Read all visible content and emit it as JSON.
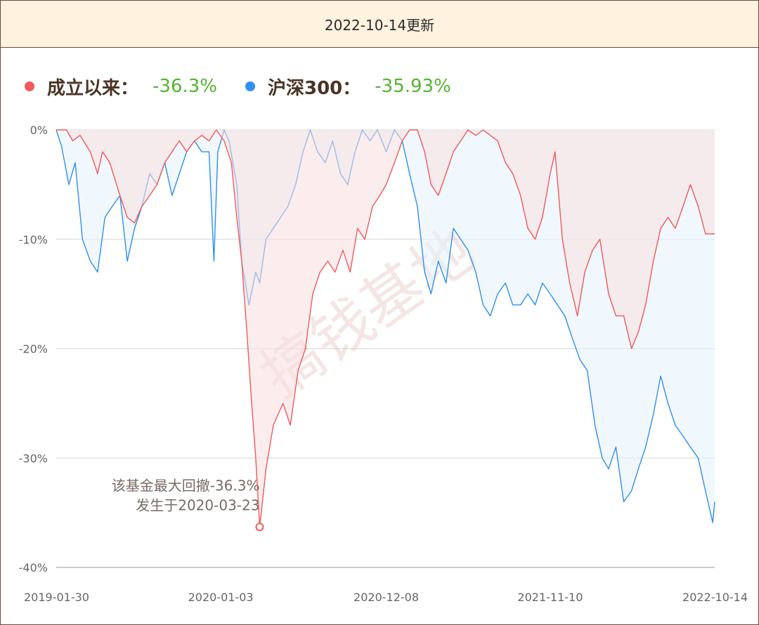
{
  "header": {
    "title": "2022-10-14更新"
  },
  "legend": {
    "items": [
      {
        "label": "成立以来：",
        "value": "-36.3%",
        "color": "#f05a5a"
      },
      {
        "label": "沪深300：",
        "value": "-35.93%",
        "color": "#2f8ff0"
      }
    ]
  },
  "annotation": {
    "line1": "该基金最大回撤-36.3%",
    "line2": "发生于2020-03-23"
  },
  "watermark": "搞钱基地",
  "chart_data": {
    "type": "area",
    "x_ticks": [
      "2019-01-30",
      "2020-01-03",
      "2020-12-08",
      "2021-11-10",
      "2022-10-14"
    ],
    "y_ticks": [
      "0%",
      "-10%",
      "-20%",
      "-30%",
      "-40%"
    ],
    "ylim": [
      -40,
      0
    ],
    "grid": true,
    "legend_position": "top-left",
    "max_drawdown": {
      "date": "2020-03-23",
      "value": -36.3
    },
    "series": [
      {
        "name": "成立以来",
        "color": "#f05a5a",
        "fill": "#f8dede",
        "points": [
          [
            "2019-01-30",
            0
          ],
          [
            "2019-02-20",
            0
          ],
          [
            "2019-03-05",
            -1.0
          ],
          [
            "2019-03-20",
            -0.5
          ],
          [
            "2019-04-10",
            -2.0
          ],
          [
            "2019-04-25",
            -4.0
          ],
          [
            "2019-05-05",
            -2.0
          ],
          [
            "2019-05-20",
            -3.0
          ],
          [
            "2019-06-10",
            -6.0
          ],
          [
            "2019-06-25",
            -8.0
          ],
          [
            "2019-07-10",
            -8.5
          ],
          [
            "2019-07-25",
            -7.0
          ],
          [
            "2019-08-10",
            -6.0
          ],
          [
            "2019-08-25",
            -5.0
          ],
          [
            "2019-09-10",
            -3.0
          ],
          [
            "2019-09-25",
            -2.0
          ],
          [
            "2019-10-10",
            -1.0
          ],
          [
            "2019-10-25",
            -2.0
          ],
          [
            "2019-11-10",
            -1.0
          ],
          [
            "2019-11-25",
            -0.5
          ],
          [
            "2019-12-10",
            -1.0
          ],
          [
            "2019-12-25",
            0
          ],
          [
            "2020-01-10",
            -1.0
          ],
          [
            "2020-01-25",
            -3.0
          ],
          [
            "2020-02-05",
            -8.0
          ],
          [
            "2020-02-15",
            -12.0
          ],
          [
            "2020-02-25",
            -18.0
          ],
          [
            "2020-03-05",
            -24.0
          ],
          [
            "2020-03-15",
            -30.0
          ],
          [
            "2020-03-23",
            -36.3
          ],
          [
            "2020-04-05",
            -31.0
          ],
          [
            "2020-04-20",
            -27.0
          ],
          [
            "2020-05-10",
            -25.0
          ],
          [
            "2020-05-25",
            -27.0
          ],
          [
            "2020-06-10",
            -22.0
          ],
          [
            "2020-06-25",
            -20.0
          ],
          [
            "2020-07-10",
            -15.0
          ],
          [
            "2020-07-25",
            -13.0
          ],
          [
            "2020-08-10",
            -12.0
          ],
          [
            "2020-08-25",
            -13.0
          ],
          [
            "2020-09-10",
            -11.0
          ],
          [
            "2020-09-25",
            -13.0
          ],
          [
            "2020-10-10",
            -9.0
          ],
          [
            "2020-10-25",
            -10.0
          ],
          [
            "2020-11-10",
            -7.0
          ],
          [
            "2020-11-25",
            -6.0
          ],
          [
            "2020-12-08",
            -5.0
          ],
          [
            "2020-12-25",
            -3.0
          ],
          [
            "2021-01-10",
            -1.0
          ],
          [
            "2021-01-25",
            0
          ],
          [
            "2021-02-10",
            0
          ],
          [
            "2021-02-25",
            -2.0
          ],
          [
            "2021-03-10",
            -5.0
          ],
          [
            "2021-03-25",
            -6.0
          ],
          [
            "2021-04-10",
            -4.0
          ],
          [
            "2021-04-25",
            -2.0
          ],
          [
            "2021-05-10",
            -1.0
          ],
          [
            "2021-05-25",
            0
          ],
          [
            "2021-06-10",
            -0.5
          ],
          [
            "2021-06-25",
            0
          ],
          [
            "2021-07-10",
            -0.5
          ],
          [
            "2021-07-25",
            -1.0
          ],
          [
            "2021-08-10",
            -3.0
          ],
          [
            "2021-08-25",
            -4.0
          ],
          [
            "2021-09-10",
            -6.0
          ],
          [
            "2021-09-25",
            -9.0
          ],
          [
            "2021-10-10",
            -10.0
          ],
          [
            "2021-10-25",
            -8.0
          ],
          [
            "2021-11-10",
            -4.0
          ],
          [
            "2021-11-20",
            -2.0
          ],
          [
            "2021-12-05",
            -10.0
          ],
          [
            "2021-12-20",
            -14.0
          ],
          [
            "2022-01-05",
            -17.0
          ],
          [
            "2022-01-20",
            -13.0
          ],
          [
            "2022-02-05",
            -11.0
          ],
          [
            "2022-02-20",
            -10.0
          ],
          [
            "2022-03-10",
            -15.0
          ],
          [
            "2022-03-25",
            -17.0
          ],
          [
            "2022-04-10",
            -17.0
          ],
          [
            "2022-04-26",
            -20.0
          ],
          [
            "2022-05-10",
            -18.5
          ],
          [
            "2022-05-25",
            -16.0
          ],
          [
            "2022-06-10",
            -12.0
          ],
          [
            "2022-06-25",
            -9.0
          ],
          [
            "2022-07-10",
            -8.0
          ],
          [
            "2022-07-25",
            -9.0
          ],
          [
            "2022-08-10",
            -7.0
          ],
          [
            "2022-08-25",
            -5.0
          ],
          [
            "2022-09-10",
            -7.0
          ],
          [
            "2022-09-25",
            -9.5
          ],
          [
            "2022-10-14",
            -9.5
          ]
        ]
      },
      {
        "name": "沪深300",
        "color": "#2f8ff0",
        "fill": "#e6f2fc",
        "points": [
          [
            "2019-01-30",
            0
          ],
          [
            "2019-02-10",
            -1.5
          ],
          [
            "2019-02-25",
            -5.0
          ],
          [
            "2019-03-10",
            -3.0
          ],
          [
            "2019-03-25",
            -10.0
          ],
          [
            "2019-04-10",
            -12.0
          ],
          [
            "2019-04-25",
            -13.0
          ],
          [
            "2019-05-10",
            -8.0
          ],
          [
            "2019-05-25",
            -7.0
          ],
          [
            "2019-06-10",
            -6.0
          ],
          [
            "2019-06-25",
            -12.0
          ],
          [
            "2019-07-10",
            -9.0
          ],
          [
            "2019-07-25",
            -7.0
          ],
          [
            "2019-08-10",
            -4.0
          ],
          [
            "2019-08-25",
            -5.0
          ],
          [
            "2019-09-10",
            -3.0
          ],
          [
            "2019-09-25",
            -6.0
          ],
          [
            "2019-10-10",
            -4.0
          ],
          [
            "2019-10-25",
            -2.0
          ],
          [
            "2019-11-10",
            -1.0
          ],
          [
            "2019-11-25",
            -2.0
          ],
          [
            "2019-12-10",
            -2.0
          ],
          [
            "2019-12-20",
            -12.0
          ],
          [
            "2019-12-28",
            -2.0
          ],
          [
            "2020-01-10",
            0
          ],
          [
            "2020-01-20",
            -1.0
          ],
          [
            "2020-02-05",
            -5.0
          ],
          [
            "2020-02-15",
            -12.0
          ],
          [
            "2020-03-01",
            -16.0
          ],
          [
            "2020-03-15",
            -13.0
          ],
          [
            "2020-03-23",
            -14.0
          ],
          [
            "2020-04-05",
            -10.0
          ],
          [
            "2020-04-20",
            -9.0
          ],
          [
            "2020-05-05",
            -8.0
          ],
          [
            "2020-05-20",
            -7.0
          ],
          [
            "2020-06-05",
            -5.0
          ],
          [
            "2020-06-20",
            -2.0
          ],
          [
            "2020-07-05",
            0
          ],
          [
            "2020-07-20",
            -2.0
          ],
          [
            "2020-08-05",
            -3.0
          ],
          [
            "2020-08-20",
            -1.0
          ],
          [
            "2020-09-05",
            -4.0
          ],
          [
            "2020-09-20",
            -5.0
          ],
          [
            "2020-10-05",
            -2.0
          ],
          [
            "2020-10-20",
            0
          ],
          [
            "2020-11-05",
            -1.0
          ],
          [
            "2020-11-20",
            0
          ],
          [
            "2020-12-08",
            -2.0
          ],
          [
            "2020-12-25",
            0
          ],
          [
            "2021-01-10",
            -1.0
          ],
          [
            "2021-01-25",
            -4.0
          ],
          [
            "2021-02-10",
            -7.0
          ],
          [
            "2021-02-25",
            -13.0
          ],
          [
            "2021-03-10",
            -15.0
          ],
          [
            "2021-03-25",
            -12.0
          ],
          [
            "2021-04-10",
            -14.0
          ],
          [
            "2021-04-25",
            -9.0
          ],
          [
            "2021-05-10",
            -10.0
          ],
          [
            "2021-05-25",
            -11.0
          ],
          [
            "2021-06-10",
            -13.0
          ],
          [
            "2021-06-25",
            -16.0
          ],
          [
            "2021-07-10",
            -17.0
          ],
          [
            "2021-07-25",
            -15.0
          ],
          [
            "2021-08-10",
            -14.0
          ],
          [
            "2021-08-25",
            -16.0
          ],
          [
            "2021-09-10",
            -16.0
          ],
          [
            "2021-09-25",
            -15.0
          ],
          [
            "2021-10-10",
            -16.0
          ],
          [
            "2021-10-25",
            -14.0
          ],
          [
            "2021-11-10",
            -15.0
          ],
          [
            "2021-11-25",
            -16.0
          ],
          [
            "2021-12-10",
            -17.0
          ],
          [
            "2021-12-25",
            -19.0
          ],
          [
            "2022-01-10",
            -21.0
          ],
          [
            "2022-01-25",
            -22.0
          ],
          [
            "2022-02-10",
            -27.0
          ],
          [
            "2022-02-25",
            -30.0
          ],
          [
            "2022-03-10",
            -31.0
          ],
          [
            "2022-03-25",
            -29.0
          ],
          [
            "2022-04-10",
            -34.0
          ],
          [
            "2022-04-26",
            -33.0
          ],
          [
            "2022-05-10",
            -31.0
          ],
          [
            "2022-05-25",
            -29.0
          ],
          [
            "2022-06-10",
            -26.0
          ],
          [
            "2022-06-25",
            -22.5
          ],
          [
            "2022-07-10",
            -25.0
          ],
          [
            "2022-07-25",
            -27.0
          ],
          [
            "2022-08-10",
            -28.0
          ],
          [
            "2022-08-25",
            -29.0
          ],
          [
            "2022-09-10",
            -30.0
          ],
          [
            "2022-09-25",
            -33.0
          ],
          [
            "2022-10-10",
            -35.9
          ],
          [
            "2022-10-14",
            -34.0
          ]
        ]
      }
    ]
  }
}
